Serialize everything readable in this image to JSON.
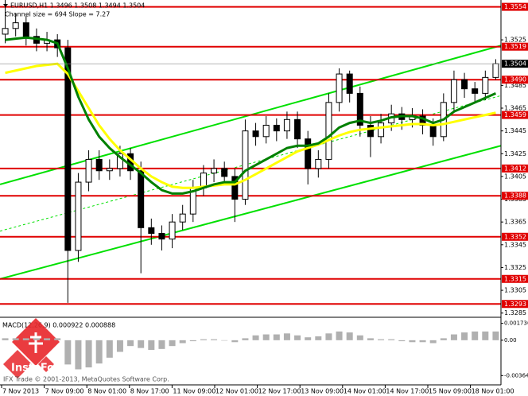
{
  "chart_data": {
    "type": "candlestick",
    "header": "EURUSD,H1  1.3496 1.3508 1.3494 1.3504",
    "subheader": "Channel size = 694 Slope = 7.27",
    "ylim": [
      1.3282,
      1.356
    ],
    "yticks": [
      1.3525,
      1.3485,
      1.3465,
      1.3445,
      1.3425,
      1.3405,
      1.3385,
      1.3365,
      1.3345,
      1.3325,
      1.3305,
      1.3285
    ],
    "levels": [
      1.3554,
      1.3519,
      {
        "value": 1.349,
        "label": "1.3490"
      },
      1.3459,
      1.3412,
      1.3388,
      1.3352,
      1.3315,
      1.3293
    ],
    "level_color": "#e00000",
    "current_price": 1.3504,
    "x_labels": [
      "7 Nov 2013",
      "7 Nov 09:00",
      "8 Nov 01:00",
      "8 Nov 17:00",
      "11 Nov 09:00",
      "12 Nov 01:00",
      "12 Nov 17:00",
      "13 Nov 09:00",
      "14 Nov 01:00",
      "14 Nov 17:00",
      "15 Nov 09:00",
      "18 Nov 01:00"
    ],
    "open": [
      1.353,
      1.3535,
      1.354,
      1.3528,
      1.3522,
      1.3525,
      1.3518,
      1.334,
      1.34,
      1.342,
      1.341,
      1.3412,
      1.3425,
      1.341,
      1.336,
      1.3355,
      1.335,
      1.3365,
      1.3372,
      1.3395,
      1.3408,
      1.3412,
      1.3405,
      1.3385,
      1.3445,
      1.344,
      1.345,
      1.3445,
      1.3455,
      1.3438,
      1.3412,
      1.342,
      1.347,
      1.3495,
      1.3478,
      1.345,
      1.344,
      1.3452,
      1.346,
      1.3455,
      1.3458,
      1.345,
      1.344,
      1.347,
      1.349,
      1.3482,
      1.3478,
      1.3492
    ],
    "high": [
      1.356,
      1.3548,
      1.3546,
      1.3535,
      1.3532,
      1.353,
      1.3525,
      1.3408,
      1.3428,
      1.3428,
      1.342,
      1.3432,
      1.343,
      1.3418,
      1.3368,
      1.3362,
      1.3372,
      1.338,
      1.3402,
      1.3415,
      1.342,
      1.3418,
      1.3412,
      1.3455,
      1.3452,
      1.3458,
      1.3456,
      1.3462,
      1.3462,
      1.3445,
      1.3428,
      1.3478,
      1.35,
      1.3498,
      1.3484,
      1.3458,
      1.346,
      1.3468,
      1.3466,
      1.3465,
      1.3464,
      1.3456,
      1.3478,
      1.3498,
      1.3496,
      1.3488,
      1.3498,
      1.3508
    ],
    "low": [
      1.3522,
      1.3528,
      1.352,
      1.3515,
      1.3515,
      1.351,
      1.3294,
      1.333,
      1.3392,
      1.3402,
      1.3402,
      1.3405,
      1.3402,
      1.332,
      1.3345,
      1.334,
      1.3342,
      1.3358,
      1.3365,
      1.3388,
      1.34,
      1.3398,
      1.3365,
      1.338,
      1.3432,
      1.3434,
      1.3436,
      1.3438,
      1.343,
      1.3398,
      1.3404,
      1.3412,
      1.3462,
      1.347,
      1.344,
      1.3422,
      1.3434,
      1.3445,
      1.3446,
      1.3448,
      1.3442,
      1.3432,
      1.3436,
      1.3462,
      1.3474,
      1.347,
      1.3472,
      1.349
    ],
    "close": [
      1.3535,
      1.354,
      1.3528,
      1.3522,
      1.3525,
      1.3518,
      1.334,
      1.34,
      1.342,
      1.341,
      1.3412,
      1.3425,
      1.341,
      1.336,
      1.3355,
      1.335,
      1.3365,
      1.3372,
      1.3395,
      1.3408,
      1.3412,
      1.3405,
      1.3385,
      1.3445,
      1.344,
      1.345,
      1.3445,
      1.3455,
      1.3438,
      1.3412,
      1.342,
      1.347,
      1.3495,
      1.3478,
      1.345,
      1.344,
      1.3452,
      1.346,
      1.3455,
      1.3458,
      1.345,
      1.344,
      1.347,
      1.349,
      1.3482,
      1.3478,
      1.3492,
      1.3504
    ],
    "lines": [
      {
        "color": "#ffff00",
        "values": [
          1.3496,
          1.3498,
          1.35,
          1.3502,
          1.3503,
          1.3504,
          1.3495,
          1.348,
          1.3465,
          1.345,
          1.3438,
          1.3428,
          1.342,
          1.3412,
          1.3405,
          1.34,
          1.3396,
          1.3395,
          1.3395,
          1.3396,
          1.3397,
          1.3398,
          1.3398,
          1.3402,
          1.3407,
          1.3412,
          1.3417,
          1.3422,
          1.3427,
          1.343,
          1.3433,
          1.3437,
          1.3441,
          1.3444,
          1.3446,
          1.3447,
          1.3448,
          1.3449,
          1.345,
          1.3451,
          1.3451,
          1.345,
          1.3451,
          1.3453,
          1.3455,
          1.3457,
          1.3459,
          1.3461
        ]
      },
      {
        "color": "#008000",
        "values": [
          1.3525,
          1.3526,
          1.3527,
          1.3526,
          1.3525,
          1.3522,
          1.35,
          1.3475,
          1.3455,
          1.344,
          1.343,
          1.3422,
          1.3415,
          1.3408,
          1.34,
          1.3393,
          1.339,
          1.339,
          1.3392,
          1.3395,
          1.3398,
          1.34,
          1.34,
          1.341,
          1.3415,
          1.342,
          1.3425,
          1.343,
          1.3432,
          1.3432,
          1.3434,
          1.344,
          1.3448,
          1.3452,
          1.3454,
          1.3452,
          1.3454,
          1.3457,
          1.3458,
          1.3458,
          1.3456,
          1.3452,
          1.3455,
          1.3462,
          1.3466,
          1.347,
          1.3474,
          1.3478
        ]
      }
    ],
    "channel": {
      "color": "#00e000",
      "upper": [
        1.3398,
        1.352
      ],
      "middle": [
        1.3357,
        1.3476
      ],
      "lower": [
        1.3315,
        1.3432
      ]
    },
    "macd": {
      "label": "MACD(12,26,9) 0.000922 0.000888",
      "color": "#b0b0b0",
      "ylim": [
        -0.0046,
        0.0022
      ],
      "yticks": [
        0.001736,
        {
          "value": 0,
          "label": "0.00"
        },
        -0.003642
      ],
      "values": [
        0.0002,
        0.0002,
        0.0002,
        0.0002,
        0.0002,
        0.0002,
        -0.0025,
        -0.003,
        -0.0028,
        -0.0024,
        -0.0018,
        -0.0012,
        -0.0006,
        -0.0008,
        -0.001,
        -0.0009,
        -0.0006,
        -0.0003,
        -0.0001,
        0.0001,
        0.0001,
        0.0,
        -0.0002,
        0.0002,
        0.0005,
        0.0006,
        0.0006,
        0.0007,
        0.0005,
        0.0003,
        0.0004,
        0.0007,
        0.0009,
        0.0008,
        0.0005,
        0.0002,
        0.0001,
        0.0001,
        -0.0001,
        -0.0002,
        -0.0002,
        -0.0003,
        0.0002,
        0.0006,
        0.0008,
        0.0009,
        0.0009,
        0.0009
      ]
    },
    "brand": "InstaForex",
    "copyright": "IFX Trade © 2001-2013, MetaQuotes Software Corp."
  }
}
